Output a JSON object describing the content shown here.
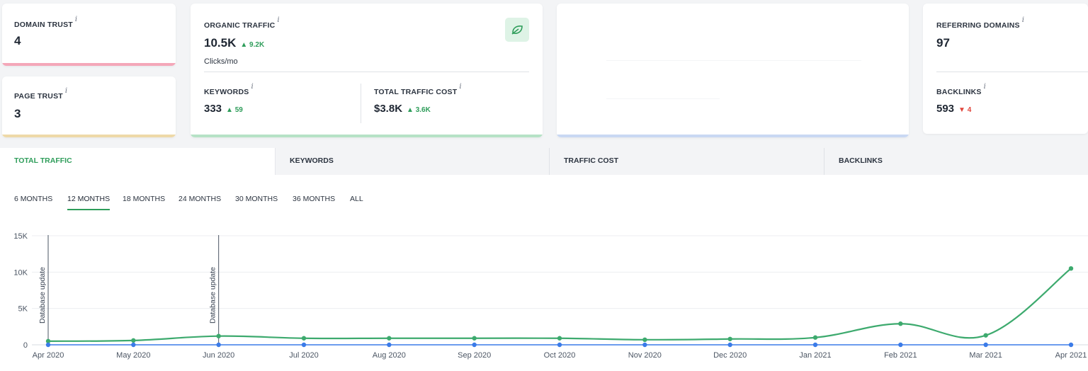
{
  "cards": {
    "domain_trust": {
      "label": "DOMAIN TRUST",
      "info": "i",
      "value": "4",
      "color": "#f4a7b9"
    },
    "page_trust": {
      "label": "PAGE TRUST",
      "info": "i",
      "value": "3",
      "color": "#eed9a8"
    },
    "organic": {
      "label": "ORGANIC TRAFFIC",
      "info": "i",
      "value": "10.5K",
      "delta": "▲ 9.2K",
      "sub": "Clicks/mo",
      "keywords": {
        "label": "KEYWORDS",
        "info": "i",
        "value": "333",
        "delta": "▲ 59"
      },
      "cost": {
        "label": "TOTAL TRAFFIC COST",
        "info": "i",
        "value": "$3.8K",
        "delta": "▲ 3.6K"
      },
      "icon": "leaf-icon",
      "color": "#b6e2c6"
    },
    "blank_color": "#c9d8f3",
    "referring": {
      "label": "REFERRING DOMAINS",
      "info": "i",
      "value": "97"
    },
    "backlinks": {
      "label": "BACKLINKS",
      "info": "i",
      "value": "593",
      "delta": "▼ 4"
    }
  },
  "tabs": [
    "TOTAL TRAFFIC",
    "KEYWORDS",
    "TRAFFIC COST",
    "BACKLINKS"
  ],
  "periods": [
    "6 MONTHS",
    "12 MONTHS",
    "18 MONTHS",
    "24 MONTHS",
    "30 MONTHS",
    "36 MONTHS",
    "ALL"
  ],
  "active_period": "12 MONTHS",
  "chart_data": {
    "type": "line",
    "x": [
      "Apr 2020",
      "May 2020",
      "Jun 2020",
      "Jul 2020",
      "Aug 2020",
      "Sep 2020",
      "Oct 2020",
      "Nov 2020",
      "Dec 2020",
      "Jan 2021",
      "Feb 2021",
      "Mar 2021",
      "Apr 2021"
    ],
    "series": [
      {
        "values": [
          500,
          600,
          1200,
          900,
          900,
          900,
          900,
          700,
          800,
          1000,
          2900,
          1300,
          10500
        ],
        "color": "#3daa6e"
      },
      {
        "values": [
          0,
          0,
          0,
          0,
          0,
          0,
          0,
          0,
          0,
          0,
          0,
          0,
          0
        ],
        "color": "#3b7be8"
      }
    ],
    "yticks": [
      "0",
      "5K",
      "10K",
      "15K"
    ],
    "ylim": [
      0,
      15000
    ],
    "grid": true,
    "annotations": [
      {
        "x": "Apr 2020",
        "text": "Database update"
      },
      {
        "x": "Jun 2020",
        "text": "Database update"
      }
    ]
  }
}
